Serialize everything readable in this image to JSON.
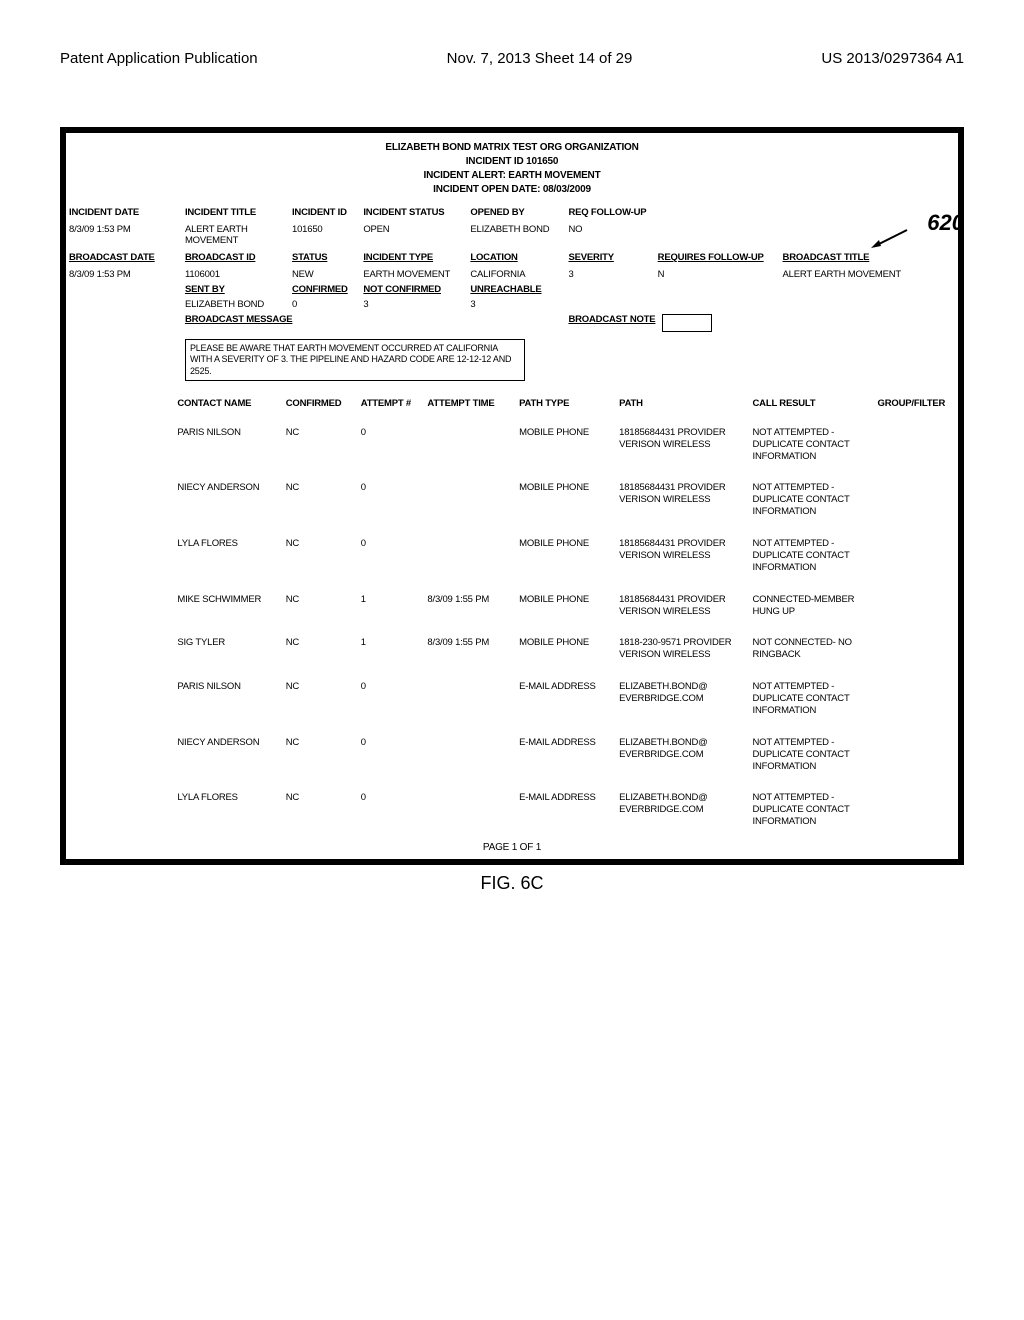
{
  "doc_header": {
    "left": "Patent Application Publication",
    "center": "Nov. 7, 2013   Sheet 14 of 29",
    "right": "US 2013/0297364 A1"
  },
  "reference_number": "620",
  "figure_caption": "FIG. 6C",
  "report": {
    "header": {
      "org": "ELIZABETH BOND MATRIX TEST ORG ORGANIZATION",
      "incident_id": "INCIDENT ID 101650",
      "alert": "INCIDENT ALERT: EARTH MOVEMENT",
      "open_date": "INCIDENT OPEN DATE: 08/03/2009"
    },
    "incident": {
      "headers": {
        "date": "INCIDENT DATE",
        "title": "INCIDENT TITLE",
        "id": "INCIDENT ID",
        "status": "INCIDENT STATUS",
        "opened_by": "OPENED BY",
        "req_followup": "REQ FOLLOW-UP"
      },
      "row": {
        "date": "8/3/09 1:53 PM",
        "title": "ALERT EARTH MOVEMENT",
        "id": "101650",
        "status": "OPEN",
        "opened_by": "ELIZABETH BOND",
        "req_followup": "NO"
      }
    },
    "broadcast": {
      "headers": {
        "date": "BROADCAST DATE",
        "id": "BROADCAST ID",
        "status": "STATUS",
        "type": "INCIDENT TYPE",
        "location": "LOCATION",
        "severity": "SEVERITY",
        "requires_followup": "REQUIRES FOLLOW-UP",
        "title": "BROADCAST TITLE"
      },
      "row": {
        "date": "8/3/09 1:53 PM",
        "id": "1106001",
        "status": "NEW",
        "type": "EARTH MOVEMENT",
        "location": "CALIFORNIA",
        "severity": "3",
        "requires_followup": "N",
        "title": "ALERT EARTH MOVEMENT"
      },
      "sub_headers": {
        "sent_by": "SENT BY",
        "confirmed": "CONFIRMED",
        "not_confirmed": "NOT CONFIRMED",
        "unreachable": "UNREACHABLE"
      },
      "sub_row": {
        "sent_by": "ELIZABETH BOND",
        "confirmed": "0",
        "not_confirmed": "3",
        "unreachable": "3"
      },
      "message_label": "BROADCAST MESSAGE",
      "note_label": "BROADCAST NOTE",
      "message_text": "PLEASE BE AWARE THAT EARTH MOVEMENT OCCURRED AT CALIFORNIA WITH A SEVERITY OF 3. THE PIPELINE AND HAZARD CODE ARE 12-12-12 AND 2525."
    },
    "contacts": {
      "headers": {
        "name": "CONTACT NAME",
        "confirmed": "CONFIRMED",
        "attempt_num": "ATTEMPT #",
        "attempt_time": "ATTEMPT TIME",
        "path_type": "PATH TYPE",
        "path": "PATH",
        "call_result": "CALL RESULT",
        "group_filter": "GROUP/FILTER"
      },
      "rows": [
        {
          "name": "PARIS NILSON",
          "confirmed": "NC",
          "attempt_num": "0",
          "attempt_time": "",
          "path_type": "MOBILE PHONE",
          "path": "18185684431 PROVIDER VERISON WIRELESS",
          "call_result": "NOT ATTEMPTED - DUPLICATE CONTACT INFORMATION",
          "group_filter": ""
        },
        {
          "name": "NIECY ANDERSON",
          "confirmed": "NC",
          "attempt_num": "0",
          "attempt_time": "",
          "path_type": "MOBILE PHONE",
          "path": "18185684431 PROVIDER VERISON WIRELESS",
          "call_result": "NOT ATTEMPTED - DUPLICATE CONTACT INFORMATION",
          "group_filter": ""
        },
        {
          "name": "LYLA FLORES",
          "confirmed": "NC",
          "attempt_num": "0",
          "attempt_time": "",
          "path_type": "MOBILE PHONE",
          "path": "18185684431 PROVIDER VERISON WIRELESS",
          "call_result": "NOT ATTEMPTED - DUPLICATE CONTACT INFORMATION",
          "group_filter": ""
        },
        {
          "name": "MIKE SCHWIMMER",
          "confirmed": "NC",
          "attempt_num": "1",
          "attempt_time": "8/3/09 1:55 PM",
          "path_type": "MOBILE PHONE",
          "path": "18185684431 PROVIDER VERISON WIRELESS",
          "call_result": "CONNECTED-MEMBER HUNG UP",
          "group_filter": ""
        },
        {
          "name": "SIG TYLER",
          "confirmed": "NC",
          "attempt_num": "1",
          "attempt_time": "8/3/09 1:55 PM",
          "path_type": "MOBILE PHONE",
          "path": "1818-230-9571 PROVIDER VERISON WIRELESS",
          "call_result": "NOT CONNECTED- NO RINGBACK",
          "group_filter": ""
        },
        {
          "name": "PARIS NILSON",
          "confirmed": "NC",
          "attempt_num": "0",
          "attempt_time": "",
          "path_type": "E-MAIL ADDRESS",
          "path": "ELIZABETH.BOND@ EVERBRIDGE.COM",
          "call_result": "NOT ATTEMPTED - DUPLICATE CONTACT INFORMATION",
          "group_filter": ""
        },
        {
          "name": "NIECY ANDERSON",
          "confirmed": "NC",
          "attempt_num": "0",
          "attempt_time": "",
          "path_type": "E-MAIL ADDRESS",
          "path": "ELIZABETH.BOND@ EVERBRIDGE.COM",
          "call_result": "NOT ATTEMPTED - DUPLICATE CONTACT INFORMATION",
          "group_filter": ""
        },
        {
          "name": "LYLA FLORES",
          "confirmed": "NC",
          "attempt_num": "0",
          "attempt_time": "",
          "path_type": "E-MAIL ADDRESS",
          "path": "ELIZABETH.BOND@ EVERBRIDGE.COM",
          "call_result": "NOT ATTEMPTED - DUPLICATE CONTACT INFORMATION",
          "group_filter": ""
        }
      ]
    },
    "page_footer": "PAGE 1 OF 1"
  },
  "layout": {
    "col_widths_incident": [
      "13%",
      "12%",
      "8%",
      "12%",
      "11%",
      "10%",
      "14%",
      "20%"
    ],
    "col_widths_contacts": [
      "14%",
      "9%",
      "8%",
      "11%",
      "12%",
      "18%",
      "17%",
      "11%"
    ]
  },
  "colors": {
    "border": "#000000",
    "text": "#000000",
    "bg": "#ffffff"
  }
}
